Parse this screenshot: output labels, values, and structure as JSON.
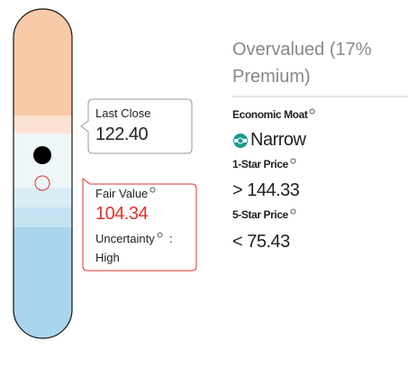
{
  "valuation": {
    "label": "Overvalued (17% Premium)"
  },
  "economic_moat": {
    "label": "Economic Moat",
    "value": "Narrow"
  },
  "one_star_price": {
    "label": "1-Star Price",
    "symbol": ">",
    "value": "144.33"
  },
  "five_star_price": {
    "label": "5-Star Price",
    "symbol": "<",
    "value": "75.43"
  },
  "last_close": {
    "label": "Last Close",
    "value": "122.40"
  },
  "fair_value": {
    "label": "Fair Value",
    "value": "104.34",
    "uncertainty_label": "Uncertainty",
    "separator": ":",
    "uncertainty": "High"
  }
}
